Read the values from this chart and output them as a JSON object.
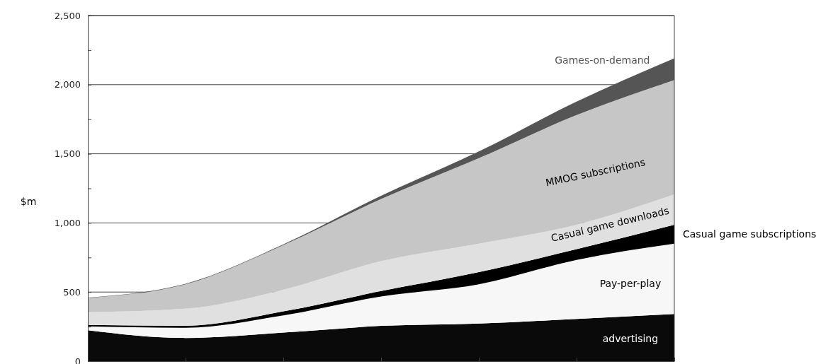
{
  "chart_data": {
    "type": "area",
    "stacked": true,
    "ylabel": "$m",
    "categories": [
      null,
      null,
      null,
      null,
      null,
      null,
      null
    ],
    "ylim": [
      0,
      2500
    ],
    "yticks": [
      0,
      {
        "value": 250,
        "label": null
      },
      {
        "value": 500,
        "label": "500"
      },
      {
        "value": 750,
        "label": null
      },
      {
        "value": 1000,
        "label": "1,000"
      },
      {
        "value": 1250,
        "label": null
      },
      {
        "value": 1500,
        "label": "1,500"
      },
      {
        "value": 1750,
        "label": null
      },
      {
        "value": 2000,
        "label": "2,000"
      },
      {
        "value": 2250,
        "label": null
      },
      {
        "value": 2500,
        "label": "2,500"
      }
    ],
    "grid": "y",
    "series": [
      {
        "name": "advertising",
        "color": "#0a0a0a",
        "values": [
          224,
          168,
          207,
          255,
          272,
          305,
          341
        ]
      },
      {
        "name": "Pay-per-play",
        "color": "#f7f7f7",
        "values": [
          28,
          74,
          124,
          213,
          284,
          428,
          509
        ]
      },
      {
        "name": "Casual game subscriptions",
        "color": "#000000",
        "values": [
          10,
          14,
          29,
          39,
          88,
          77,
          137
        ]
      },
      {
        "name": "Casual game downloads",
        "color": "#e0e0e0",
        "values": [
          92,
          124,
          157,
          216,
          206,
          177,
          219
        ]
      },
      {
        "name": "MMOG subscriptions",
        "color": "#c6c6c6",
        "values": [
          104,
          176,
          323,
          450,
          618,
          793,
          828
        ]
      },
      {
        "name": "Games-on-demand",
        "color": "#555555",
        "values": [
          2,
          4,
          5,
          23,
          49,
          98,
          157
        ]
      }
    ]
  }
}
